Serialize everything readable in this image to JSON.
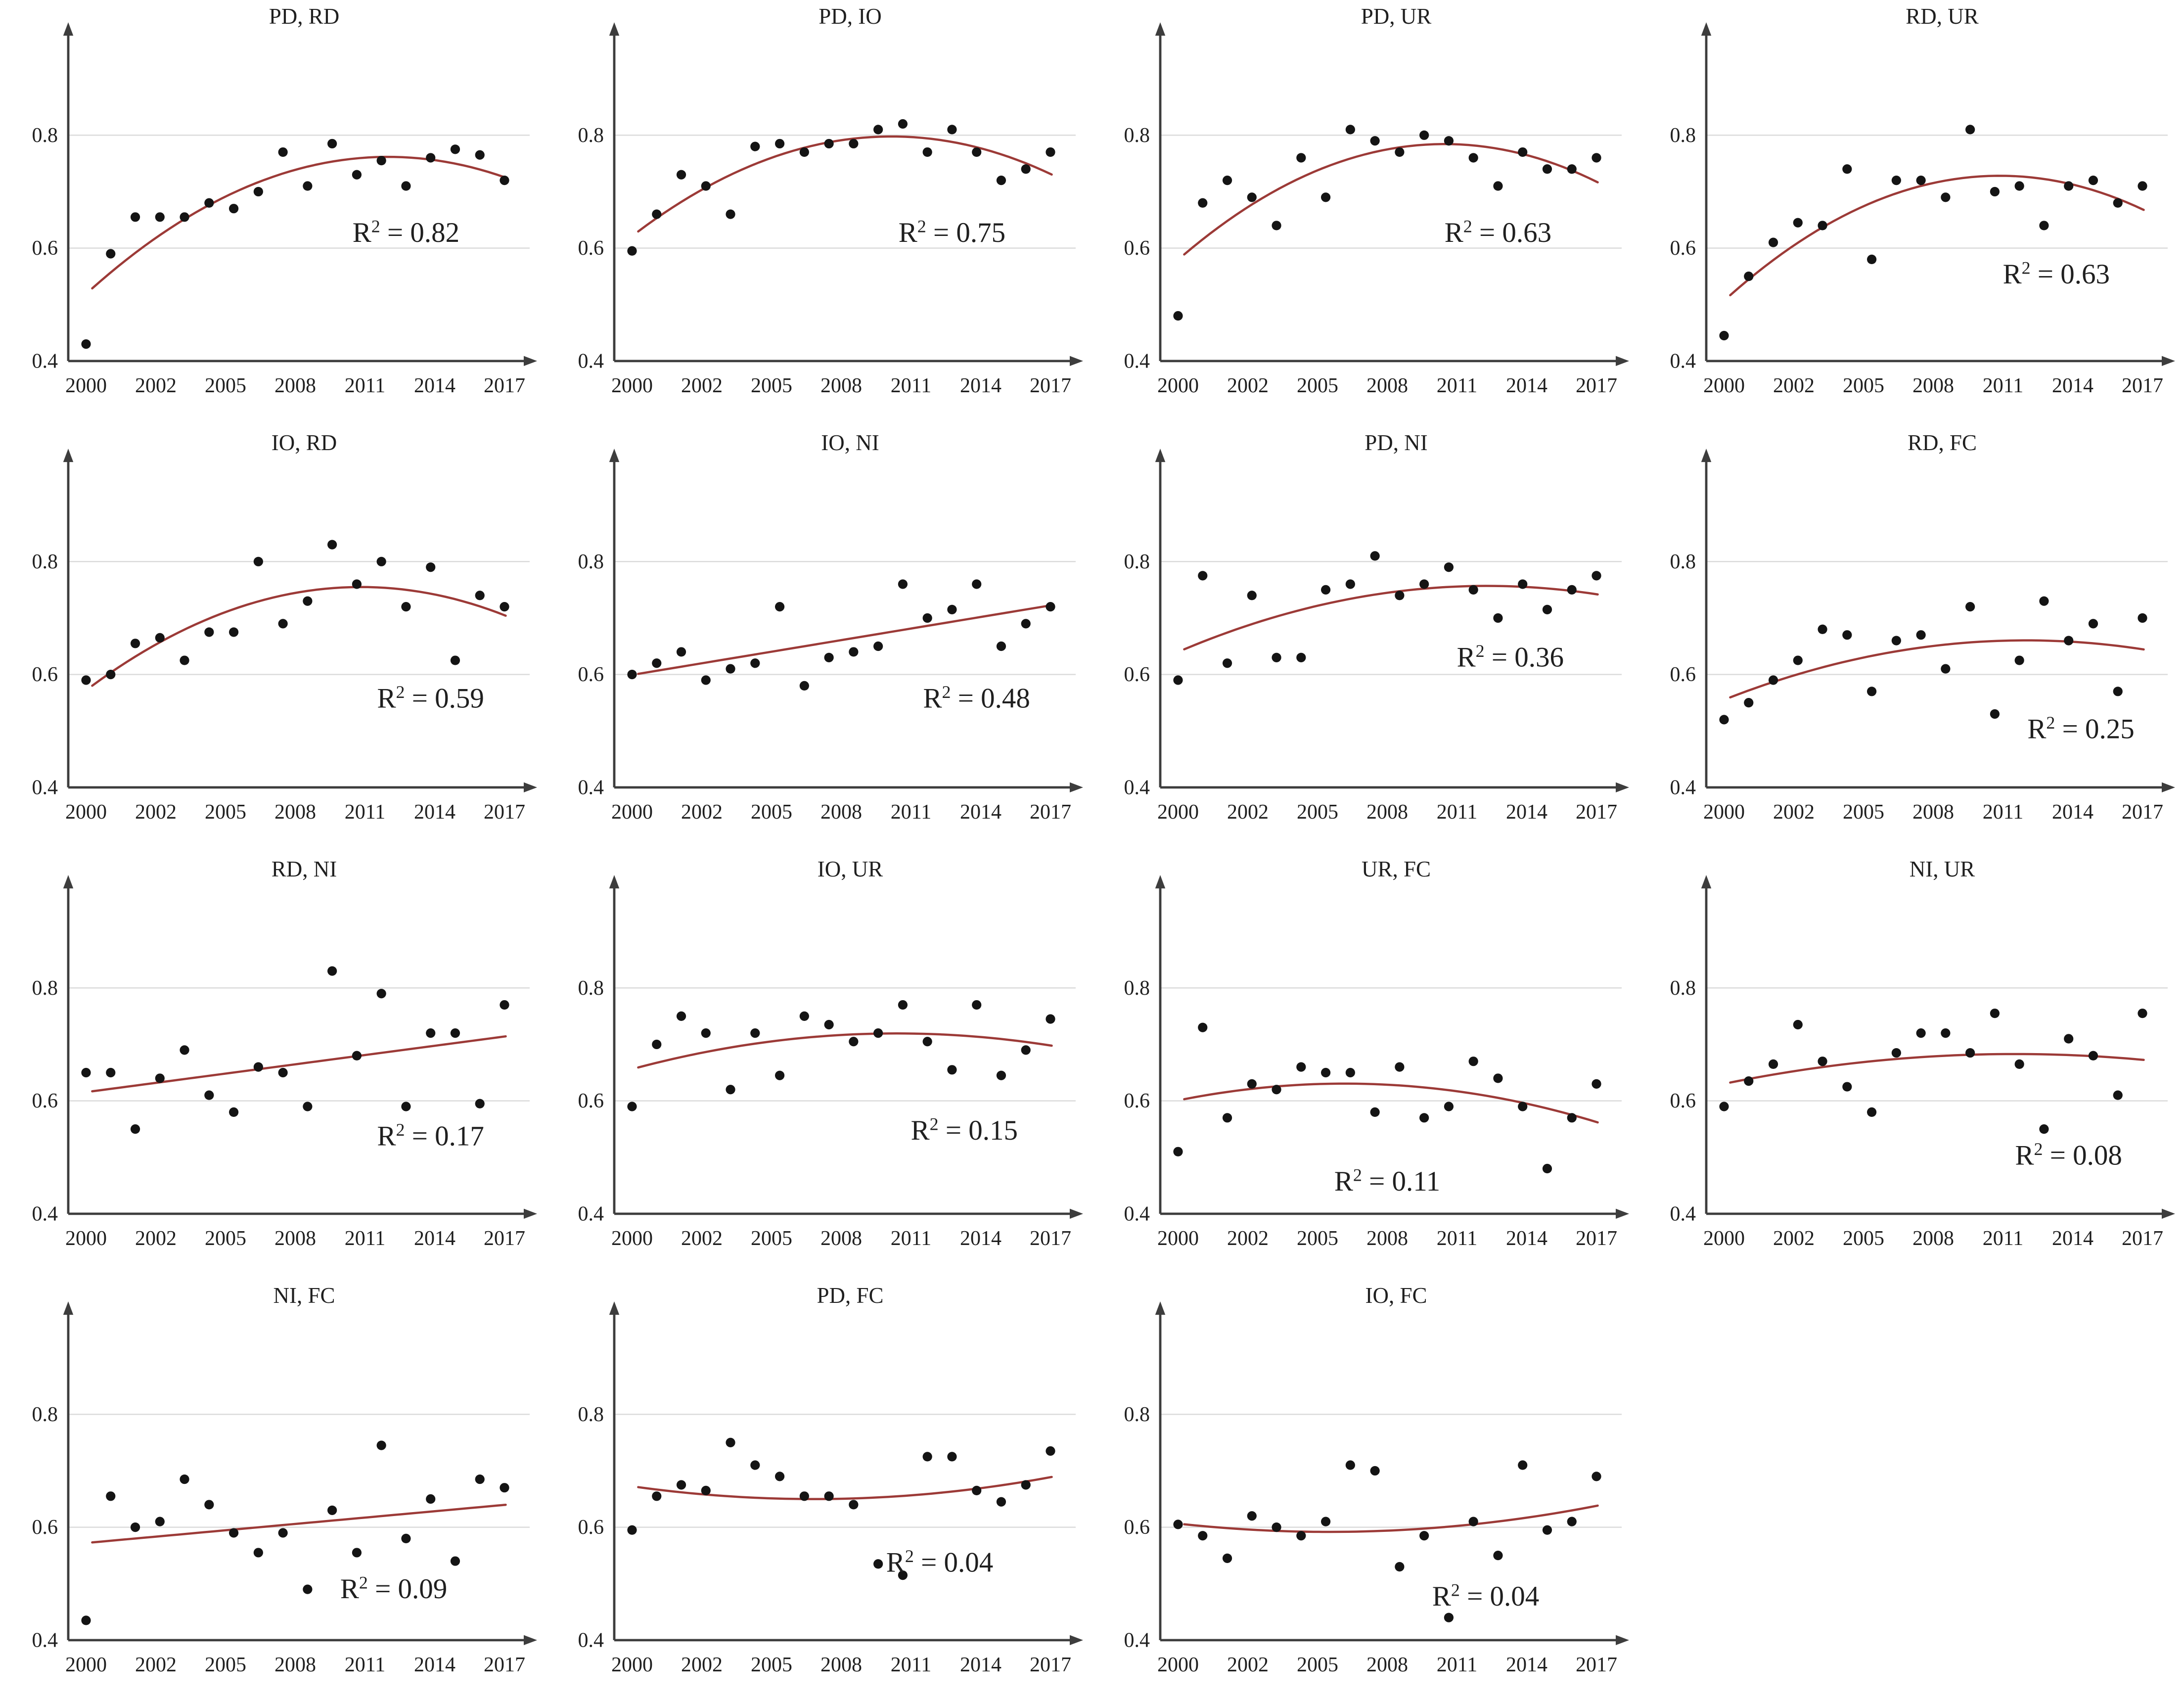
{
  "figure": {
    "background": "#ffffff",
    "colors": {
      "trend": "#9c3a37",
      "point": "#141414",
      "grid": "#d9d9d9",
      "axis": "#3d3d3d",
      "text": "#1f1f1f"
    },
    "axis": {
      "ylim": [
        0.4,
        0.97
      ],
      "y_tick_labels": [
        "0.8",
        "0.6",
        "0.4"
      ],
      "y_tick_values": [
        0.8,
        0.6,
        0.4
      ],
      "gridline_values": [
        0.8,
        0.6
      ],
      "x_tick_labels": [
        "2000",
        "2002",
        "2005",
        "2008",
        "2011",
        "2014",
        "2017"
      ],
      "years": [
        2000,
        2001,
        2002,
        2003,
        2004,
        2005,
        2006,
        2007,
        2008,
        2009,
        2010,
        2011,
        2012,
        2013,
        2014,
        2015,
        2016,
        2017
      ],
      "grid_on": true,
      "legend": "none"
    },
    "r2_prefix": "R",
    "r2_sup": "2",
    "r2_equals": " = "
  },
  "chart_data": [
    {
      "type": "scatter",
      "title": "PD, RD",
      "r2": "0.82",
      "fit": "quadratic",
      "r2_pos": [
        2013,
        0.627
      ],
      "values": [
        0.43,
        0.59,
        0.655,
        0.655,
        0.655,
        0.68,
        0.67,
        0.7,
        0.77,
        0.71,
        0.785,
        0.73,
        0.755,
        0.71,
        0.76,
        0.775,
        0.765,
        0.72
      ]
    },
    {
      "type": "scatter",
      "title": "PD, IO",
      "r2": "0.75",
      "fit": "quadratic",
      "r2_pos": [
        2013,
        0.627
      ],
      "values": [
        0.595,
        0.66,
        0.73,
        0.71,
        0.66,
        0.78,
        0.785,
        0.77,
        0.785,
        0.785,
        0.81,
        0.82,
        0.77,
        0.81,
        0.77,
        0.72,
        0.74,
        0.77
      ]
    },
    {
      "type": "scatter",
      "title": "PD, UR",
      "r2": "0.63",
      "fit": "quadratic",
      "r2_pos": [
        2013,
        0.627
      ],
      "values": [
        0.48,
        0.68,
        0.72,
        0.69,
        0.64,
        0.76,
        0.69,
        0.81,
        0.79,
        0.77,
        0.8,
        0.79,
        0.76,
        0.71,
        0.77,
        0.74,
        0.74,
        0.76
      ]
    },
    {
      "type": "scatter",
      "title": "RD, UR",
      "r2": "0.63",
      "fit": "quadratic",
      "r2_pos": [
        2013.5,
        0.553
      ],
      "values": [
        0.445,
        0.55,
        0.61,
        0.645,
        0.64,
        0.74,
        0.58,
        0.72,
        0.72,
        0.69,
        0.81,
        0.7,
        0.71,
        0.64,
        0.71,
        0.72,
        0.68,
        0.71
      ]
    },
    {
      "type": "scatter",
      "title": "IO, RD",
      "r2": "0.59",
      "fit": "quadratic",
      "r2_pos": [
        2014,
        0.557
      ],
      "values": [
        0.59,
        0.6,
        0.655,
        0.665,
        0.625,
        0.675,
        0.675,
        0.8,
        0.69,
        0.73,
        0.83,
        0.76,
        0.8,
        0.72,
        0.79,
        0.625,
        0.74,
        0.72
      ]
    },
    {
      "type": "scatter",
      "title": "IO, NI",
      "r2": "0.48",
      "fit": "linear",
      "r2_pos": [
        2014,
        0.557
      ],
      "values": [
        0.6,
        0.62,
        0.64,
        0.59,
        0.61,
        0.62,
        0.72,
        0.58,
        0.63,
        0.64,
        0.65,
        0.76,
        0.7,
        0.715,
        0.76,
        0.65,
        0.69,
        0.72
      ]
    },
    {
      "type": "scatter",
      "title": "PD, NI",
      "r2": "0.36",
      "fit": "quadratic",
      "r2_pos": [
        2013.5,
        0.63
      ],
      "values": [
        0.59,
        0.775,
        0.62,
        0.74,
        0.63,
        0.63,
        0.75,
        0.76,
        0.81,
        0.74,
        0.76,
        0.79,
        0.75,
        0.7,
        0.76,
        0.715,
        0.75,
        0.775
      ]
    },
    {
      "type": "scatter",
      "title": "RD, FC",
      "r2": "0.25",
      "fit": "quadratic",
      "r2_pos": [
        2014.5,
        0.503
      ],
      "values": [
        0.52,
        0.55,
        0.59,
        0.625,
        0.68,
        0.67,
        0.57,
        0.66,
        0.67,
        0.61,
        0.72,
        0.53,
        0.625,
        0.73,
        0.66,
        0.69,
        0.57,
        0.7
      ]
    },
    {
      "type": "scatter",
      "title": "RD, NI",
      "r2": "0.17",
      "fit": "linear",
      "r2_pos": [
        2014,
        0.537
      ],
      "values": [
        0.65,
        0.65,
        0.55,
        0.64,
        0.69,
        0.61,
        0.58,
        0.66,
        0.65,
        0.59,
        0.83,
        0.68,
        0.79,
        0.59,
        0.72,
        0.72,
        0.595,
        0.77
      ]
    },
    {
      "type": "scatter",
      "title": "IO, UR",
      "r2": "0.15",
      "fit": "quadratic",
      "r2_pos": [
        2013.5,
        0.547
      ],
      "values": [
        0.59,
        0.7,
        0.75,
        0.72,
        0.62,
        0.72,
        0.645,
        0.75,
        0.735,
        0.705,
        0.72,
        0.77,
        0.705,
        0.655,
        0.77,
        0.645,
        0.69,
        0.745
      ]
    },
    {
      "type": "scatter",
      "title": "UR, FC",
      "r2": "0.11",
      "fit": "quadratic",
      "r2_pos": [
        2008.5,
        0.457
      ],
      "values": [
        0.51,
        0.73,
        0.57,
        0.63,
        0.62,
        0.66,
        0.65,
        0.65,
        0.58,
        0.66,
        0.57,
        0.59,
        0.67,
        0.64,
        0.59,
        0.48,
        0.57,
        0.63
      ]
    },
    {
      "type": "scatter",
      "title": "NI, UR",
      "r2": "0.08",
      "fit": "quadratic",
      "r2_pos": [
        2014,
        0.503
      ],
      "values": [
        0.59,
        0.635,
        0.665,
        0.735,
        0.67,
        0.625,
        0.58,
        0.685,
        0.72,
        0.72,
        0.685,
        0.755,
        0.665,
        0.55,
        0.71,
        0.68,
        0.61,
        0.755
      ]
    },
    {
      "type": "scatter",
      "title": "NI, FC",
      "r2": "0.09",
      "fit": "linear",
      "r2_pos": [
        2012.5,
        0.49
      ],
      "values": [
        0.435,
        0.655,
        0.6,
        0.61,
        0.685,
        0.64,
        0.59,
        0.555,
        0.59,
        0.49,
        0.63,
        0.555,
        0.745,
        0.58,
        0.65,
        0.54,
        0.685,
        0.67
      ]
    },
    {
      "type": "scatter",
      "title": "PD, FC",
      "r2": "0.04",
      "fit": "quadratic",
      "r2_pos": [
        2012.5,
        0.537
      ],
      "values": [
        0.595,
        0.655,
        0.675,
        0.665,
        0.75,
        0.71,
        0.69,
        0.655,
        0.655,
        0.64,
        0.535,
        0.515,
        0.725,
        0.725,
        0.665,
        0.645,
        0.675,
        0.735
      ]
    },
    {
      "type": "scatter",
      "title": "IO, FC",
      "r2": "0.04",
      "fit": "quadratic",
      "r2_pos": [
        2012.5,
        0.477
      ],
      "values": [
        0.605,
        0.585,
        0.545,
        0.62,
        0.6,
        0.585,
        0.61,
        0.71,
        0.7,
        0.53,
        0.585,
        0.44,
        0.61,
        0.55,
        0.71,
        0.595,
        0.61,
        0.69
      ]
    }
  ]
}
